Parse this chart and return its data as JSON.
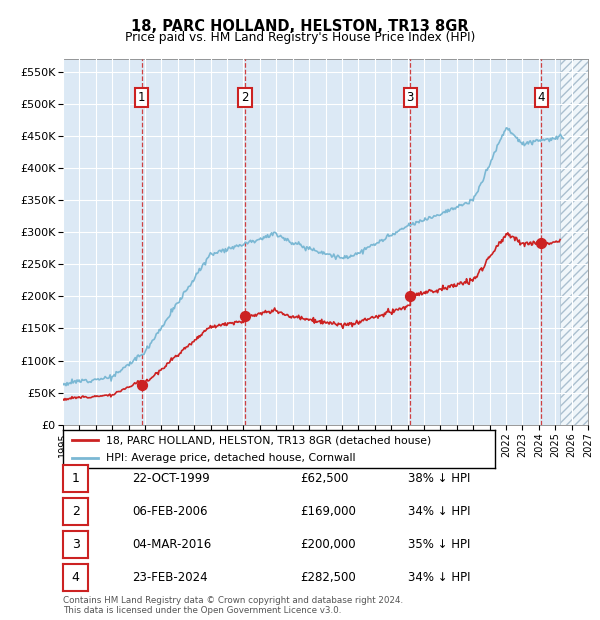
{
  "title": "18, PARC HOLLAND, HELSTON, TR13 8GR",
  "subtitle": "Price paid vs. HM Land Registry's House Price Index (HPI)",
  "ylim": [
    0,
    570000
  ],
  "yticks": [
    0,
    50000,
    100000,
    150000,
    200000,
    250000,
    300000,
    350000,
    400000,
    450000,
    500000,
    550000
  ],
  "ytick_labels": [
    "£0",
    "£50K",
    "£100K",
    "£150K",
    "£200K",
    "£250K",
    "£300K",
    "£350K",
    "£400K",
    "£450K",
    "£500K",
    "£550K"
  ],
  "hpi_color": "#7bb8d4",
  "price_color": "#cc2222",
  "plot_bg": "#dce9f5",
  "transactions": [
    {
      "num": 1,
      "price": 62500,
      "year": 1999.8,
      "date_label": "22-OCT-1999",
      "amount": "£62,500",
      "pct": "38% ↓ HPI"
    },
    {
      "num": 2,
      "price": 169000,
      "year": 2006.1,
      "date_label": "06-FEB-2006",
      "amount": "£169,000",
      "pct": "34% ↓ HPI"
    },
    {
      "num": 3,
      "price": 200000,
      "year": 2016.17,
      "date_label": "04-MAR-2016",
      "amount": "£200,000",
      "pct": "35% ↓ HPI"
    },
    {
      "num": 4,
      "price": 282500,
      "year": 2024.15,
      "date_label": "23-FEB-2024",
      "amount": "£282,500",
      "pct": "34% ↓ HPI"
    }
  ],
  "legend_label_price": "18, PARC HOLLAND, HELSTON, TR13 8GR (detached house)",
  "legend_label_hpi": "HPI: Average price, detached house, Cornwall",
  "footer": "Contains HM Land Registry data © Crown copyright and database right 2024.\nThis data is licensed under the Open Government Licence v3.0.",
  "xmin": 1995,
  "xmax": 2027,
  "future_start": 2025.3,
  "xticks": [
    1995,
    1996,
    1997,
    1998,
    1999,
    2000,
    2001,
    2002,
    2003,
    2004,
    2005,
    2006,
    2007,
    2008,
    2009,
    2010,
    2011,
    2012,
    2013,
    2014,
    2015,
    2016,
    2017,
    2018,
    2019,
    2020,
    2021,
    2022,
    2023,
    2024,
    2025,
    2026,
    2027
  ]
}
